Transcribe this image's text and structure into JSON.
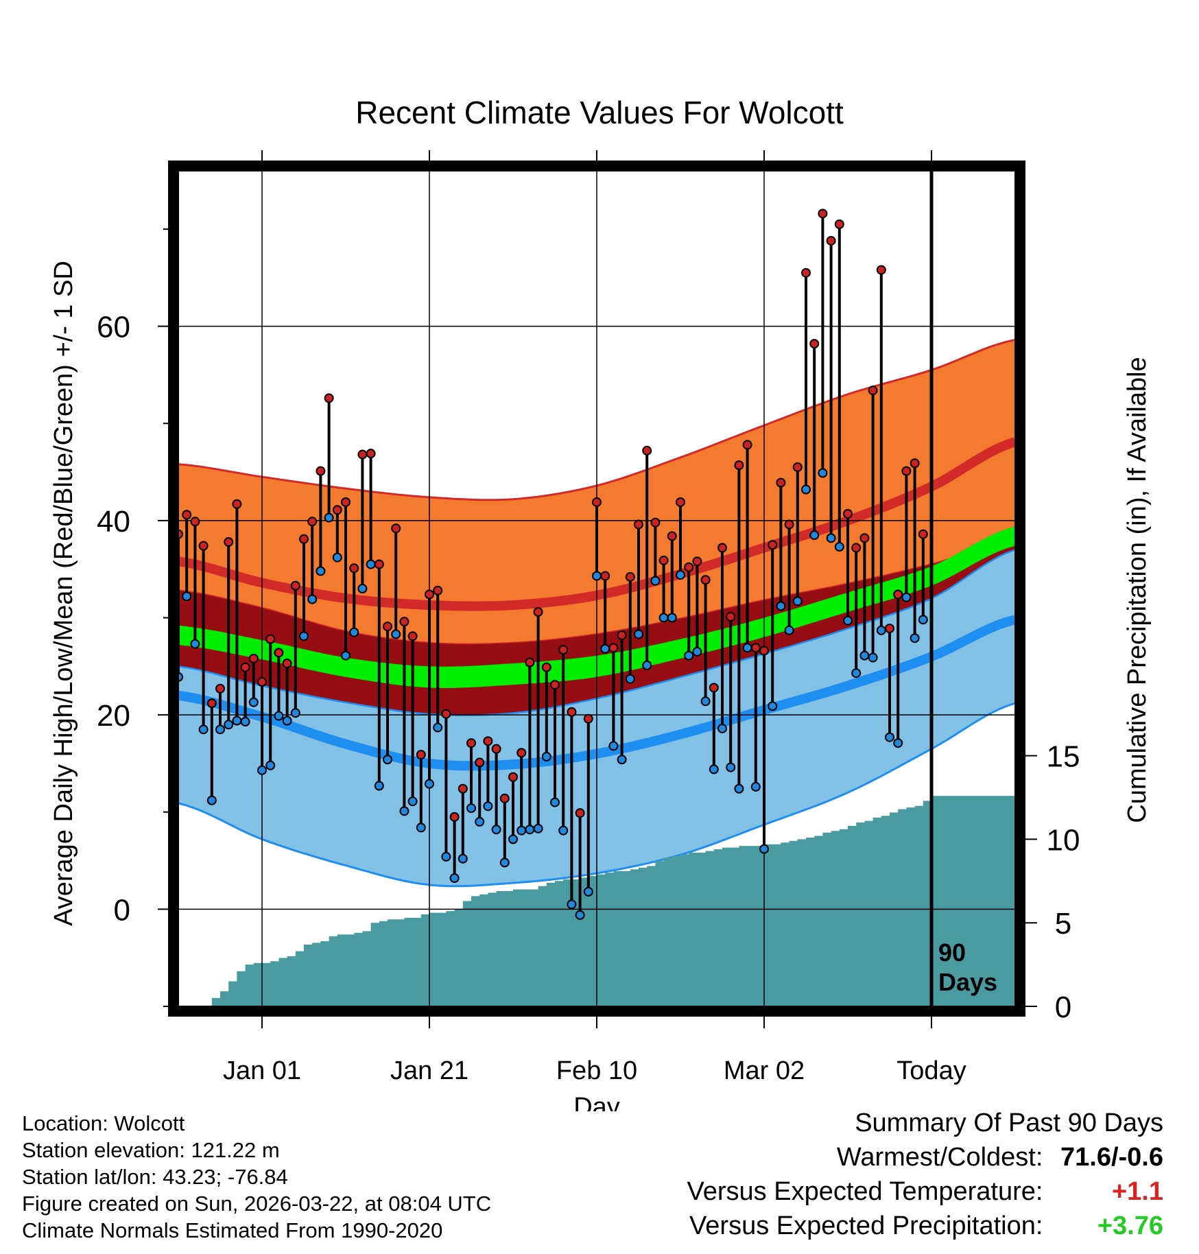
{
  "chart_data": {
    "type": "line",
    "title": "Recent Climate Values For Wolcott",
    "xlabel": "Day",
    "ylabel": "Average Daily High/Low/Mean (Red/Blue/Green) +/- 1 SD",
    "y2label": "Cumulative Precipitation (in), If Available",
    "xlim": [
      -10,
      90
    ],
    "ylim": [
      -10,
      76
    ],
    "y2lim": [
      0,
      50
    ],
    "y_ticks": [
      0,
      20,
      40,
      60
    ],
    "y2_ticks": [
      0,
      5,
      10,
      15
    ],
    "x_ticks": [
      {
        "x": 0,
        "label": "Jan 01"
      },
      {
        "x": 20,
        "label": "Jan 21"
      },
      {
        "x": 40,
        "label": "Feb 10"
      },
      {
        "x": 60,
        "label": "Mar 02"
      },
      {
        "x": 80,
        "label": "Today"
      }
    ],
    "today_marker": {
      "x": 80,
      "label_line1": "90",
      "label_line2": "Days"
    },
    "colors": {
      "high_band": "#f47a30",
      "high_normal": "#d22a28",
      "mid_band": "#960e14",
      "mean_normal": "#00ee00",
      "low_band": "#82c0e6",
      "low_normal": "#1e8ff0",
      "precip": "#4a9aa2",
      "obs_high_dot": "#cc2222",
      "obs_low_dot": "#2288dd"
    },
    "normals": {
      "x": [
        -10,
        0,
        10,
        20,
        30,
        40,
        50,
        60,
        70,
        80,
        90
      ],
      "high_upper": [
        45.8,
        44.5,
        43.3,
        42.4,
        42.2,
        43.6,
        46.5,
        49.8,
        53.0,
        55.5,
        58.6
      ],
      "high_mean": [
        35.8,
        33.6,
        32.0,
        31.3,
        31.3,
        32.3,
        34.5,
        37.2,
        40.0,
        43.5,
        48.1
      ],
      "high_lower": [
        32.8,
        31.0,
        28.6,
        27.4,
        27.4,
        28.3,
        29.9,
        31.8,
        33.5,
        35.5,
        37.9
      ],
      "mean_upper": [
        29.2,
        27.7,
        25.9,
        25.0,
        25.3,
        26.1,
        27.8,
        30.0,
        32.6,
        35.3,
        39.4
      ],
      "mean_lower": [
        27.2,
        25.7,
        23.9,
        22.8,
        23.1,
        23.9,
        25.8,
        28.0,
        30.6,
        33.3,
        37.4
      ],
      "low_upper": [
        25.0,
        23.0,
        21.3,
        20.1,
        20.2,
        21.7,
        23.9,
        26.3,
        28.9,
        32.0,
        37.0
      ],
      "low_mean": [
        22.0,
        19.8,
        17.0,
        15.0,
        14.9,
        16.0,
        18.0,
        20.5,
        23.0,
        26.0,
        29.8
      ],
      "low_lower": [
        10.9,
        7.2,
        4.5,
        2.5,
        2.7,
        3.7,
        5.6,
        8.7,
        12.0,
        16.5,
        21.2
      ]
    },
    "observed": {
      "x": [
        -10,
        -9,
        -8,
        -7,
        -6,
        -5,
        -4,
        -3,
        -2,
        -1,
        0,
        1,
        2,
        3,
        4,
        5,
        6,
        7,
        8,
        9,
        10,
        11,
        12,
        13,
        14,
        15,
        16,
        17,
        18,
        19,
        20,
        21,
        22,
        23,
        24,
        25,
        26,
        27,
        28,
        29,
        30,
        31,
        32,
        33,
        34,
        35,
        36,
        37,
        38,
        39,
        40,
        41,
        42,
        43,
        44,
        45,
        46,
        47,
        48,
        49,
        50,
        51,
        52,
        53,
        54,
        55,
        56,
        57,
        58,
        59,
        60,
        61,
        62,
        63,
        64,
        65,
        66,
        67,
        68,
        69,
        70,
        71,
        72,
        73,
        74,
        75,
        76,
        77,
        78,
        79
      ],
      "high": [
        38.6,
        40.6,
        39.9,
        37.4,
        21.2,
        22.7,
        37.8,
        41.7,
        24.9,
        25.8,
        23.4,
        27.8,
        26.4,
        25.3,
        33.3,
        38.1,
        39.9,
        45.1,
        52.6,
        41.1,
        41.9,
        35.1,
        46.8,
        46.9,
        35.5,
        29.1,
        39.2,
        29.6,
        28.1,
        15.9,
        32.4,
        32.8,
        20.1,
        9.5,
        12.4,
        17.1,
        15.1,
        17.3,
        16.5,
        11.4,
        13.6,
        16.1,
        25.4,
        30.6,
        24.9,
        23.1,
        26.7,
        20.3,
        9.9,
        19.6,
        41.9,
        34.3,
        26.9,
        28.2,
        34.2,
        39.6,
        47.2,
        39.8,
        35.9,
        38.4,
        41.9,
        35.2,
        35.8,
        33.9,
        22.8,
        37.2,
        30.1,
        45.7,
        47.8,
        26.9,
        26.6,
        37.5,
        43.9,
        39.6,
        45.5,
        65.5,
        58.2,
        71.6,
        68.8,
        70.5,
        40.7,
        37.2,
        38.2,
        53.4,
        65.8,
        28.9,
        32.4,
        45.1,
        45.9,
        38.6
      ],
      "low": [
        23.9,
        32.2,
        27.3,
        18.5,
        11.2,
        18.5,
        19.0,
        19.4,
        19.3,
        21.3,
        14.3,
        14.8,
        19.9,
        19.4,
        20.2,
        28.1,
        31.9,
        34.8,
        40.3,
        36.2,
        26.1,
        28.5,
        33.0,
        35.5,
        12.7,
        15.4,
        28.3,
        10.1,
        11.1,
        8.4,
        12.9,
        18.7,
        5.4,
        3.2,
        5.2,
        10.4,
        9.0,
        10.6,
        8.2,
        4.8,
        7.2,
        8.1,
        8.2,
        8.3,
        15.7,
        11.0,
        8.1,
        0.5,
        -0.6,
        1.8,
        34.3,
        26.8,
        16.8,
        15.4,
        23.7,
        28.3,
        25.1,
        33.8,
        30.0,
        30.0,
        34.4,
        26.1,
        26.5,
        21.4,
        14.4,
        18.6,
        14.6,
        12.4,
        26.9,
        12.6,
        6.2,
        20.9,
        31.2,
        28.7,
        31.7,
        43.2,
        38.5,
        44.9,
        38.2,
        37.3,
        29.7,
        24.3,
        26.1,
        25.9,
        28.7,
        17.7,
        17.1,
        32.1,
        27.9,
        29.8
      ]
    },
    "cumulative_precip": {
      "x": [
        -10,
        -6.5,
        -6,
        -5,
        -4,
        -3,
        -2,
        -1,
        0,
        1,
        2,
        3,
        4,
        5,
        6,
        7,
        8,
        9,
        10,
        11,
        12,
        13,
        14,
        15,
        16,
        17,
        18,
        19,
        20,
        21,
        22,
        23,
        24,
        25,
        26,
        27,
        28,
        29,
        30,
        31,
        32,
        33,
        34,
        35,
        36,
        37,
        38,
        39,
        40,
        41,
        42,
        43,
        44,
        45,
        46,
        47,
        48,
        49,
        50,
        51,
        52,
        53,
        54,
        55,
        56,
        57,
        58,
        59,
        60,
        61,
        62,
        63,
        64,
        65,
        66,
        67,
        68,
        69,
        70,
        71,
        72,
        73,
        74,
        75,
        76,
        77,
        78,
        79,
        80,
        90
      ],
      "values": [
        0,
        0,
        0.5,
        0.9,
        1.5,
        2.1,
        2.5,
        2.6,
        2.6,
        2.7,
        2.9,
        3.0,
        3.3,
        3.7,
        3.8,
        3.9,
        4.2,
        4.3,
        4.3,
        4.4,
        4.5,
        5.0,
        5.1,
        5.2,
        5.2,
        5.3,
        5.3,
        5.5,
        5.6,
        5.6,
        5.7,
        5.8,
        6.3,
        6.6,
        6.7,
        6.8,
        6.9,
        6.9,
        7.0,
        7.0,
        7.0,
        7.2,
        7.4,
        7.5,
        7.6,
        7.6,
        7.7,
        7.8,
        7.9,
        8.0,
        8.1,
        8.1,
        8.2,
        8.3,
        8.4,
        8.7,
        8.9,
        9.0,
        9.1,
        9.2,
        9.2,
        9.3,
        9.4,
        9.5,
        9.5,
        9.6,
        9.6,
        9.6,
        9.7,
        9.7,
        9.8,
        9.9,
        10.0,
        10.1,
        10.2,
        10.4,
        10.5,
        10.6,
        10.8,
        11.0,
        11.1,
        11.3,
        11.4,
        11.6,
        11.8,
        11.9,
        12.0,
        12.3,
        12.6,
        12.6
      ]
    }
  },
  "footer": {
    "location": "Location: Wolcott",
    "elevation": "Station elevation: 121.22 m",
    "latlon": "Station lat/lon: 43.23; -76.84",
    "created": "Figure created on Sun, 2026-03-22, at 08:04 UTC",
    "normals": "Climate Normals Estimated From 1990-2020"
  },
  "summary": {
    "title": "Summary Of Past 90 Days",
    "warmest_label": "Warmest/Coldest:",
    "warmest_value": "71.6/-0.6",
    "temp_label": "Versus Expected Temperature:",
    "temp_value": "+1.1",
    "temp_color": "#dd2222",
    "precip_label": "Versus Expected Precipitation:",
    "precip_value": "+3.76",
    "precip_color": "#22cc22"
  }
}
